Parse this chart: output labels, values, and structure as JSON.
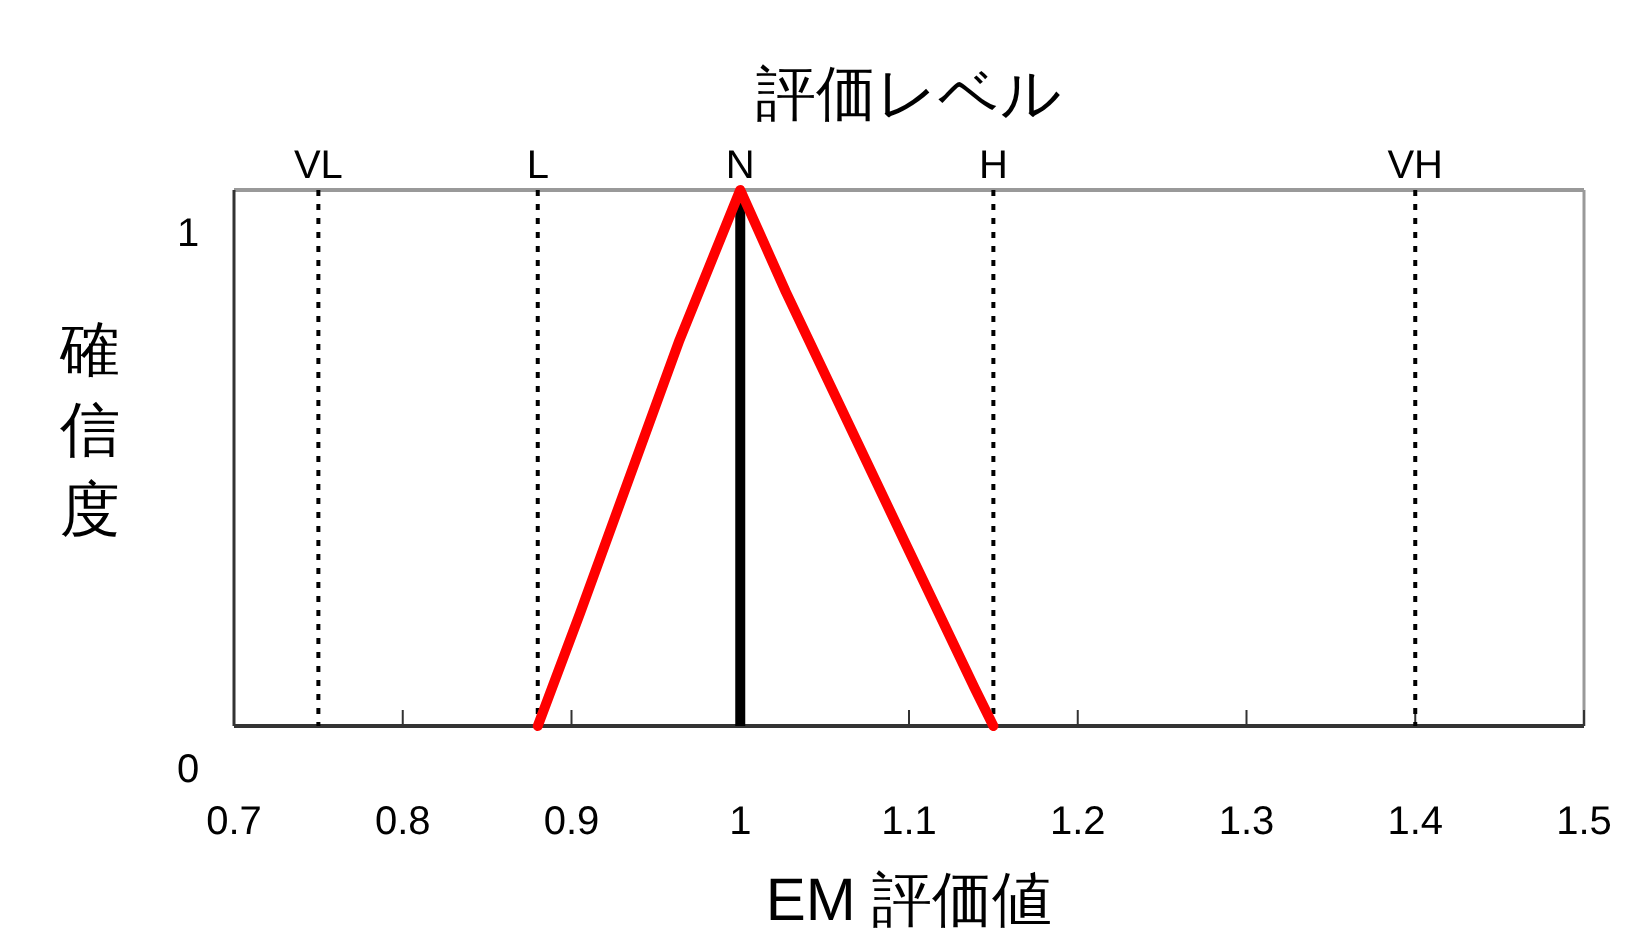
{
  "chart_data": {
    "type": "line",
    "title": "評価レベル",
    "xlabel": "EM 評価値",
    "ylabel": "確信度",
    "xlim": [
      0.7,
      1.5
    ],
    "xticks": [
      0.7,
      0.8,
      0.9,
      1,
      1.1,
      1.2,
      1.3,
      1.4,
      1.5
    ],
    "ylim": [
      0,
      1
    ],
    "yticks": [
      0,
      1
    ],
    "ref_lines": [
      {
        "axis": "x",
        "value": 0.75,
        "label": "VL",
        "color": "#000000",
        "line_style": "dotted"
      },
      {
        "axis": "x",
        "value": 0.88,
        "label": "L",
        "color": "#000000",
        "line_style": "dotted"
      },
      {
        "axis": "x",
        "value": 1,
        "label": "N",
        "color": "#000000",
        "line_style": "solid"
      },
      {
        "axis": "x",
        "value": 1.15,
        "label": "H",
        "color": "#000000",
        "line_style": "dotted"
      },
      {
        "axis": "x",
        "value": 1.4,
        "label": "VH",
        "color": "#000000",
        "line_style": "dotted"
      }
    ],
    "series": [
      {
        "color": "#ff0000",
        "x": [
          0.88,
          0.905,
          0.964,
          1,
          1.027,
          1.098,
          1.139,
          1.15
        ],
        "values": [
          0,
          0.21,
          0.72,
          1,
          0.81,
          0.34,
          0.07,
          0
        ]
      }
    ],
    "grid": false
  }
}
